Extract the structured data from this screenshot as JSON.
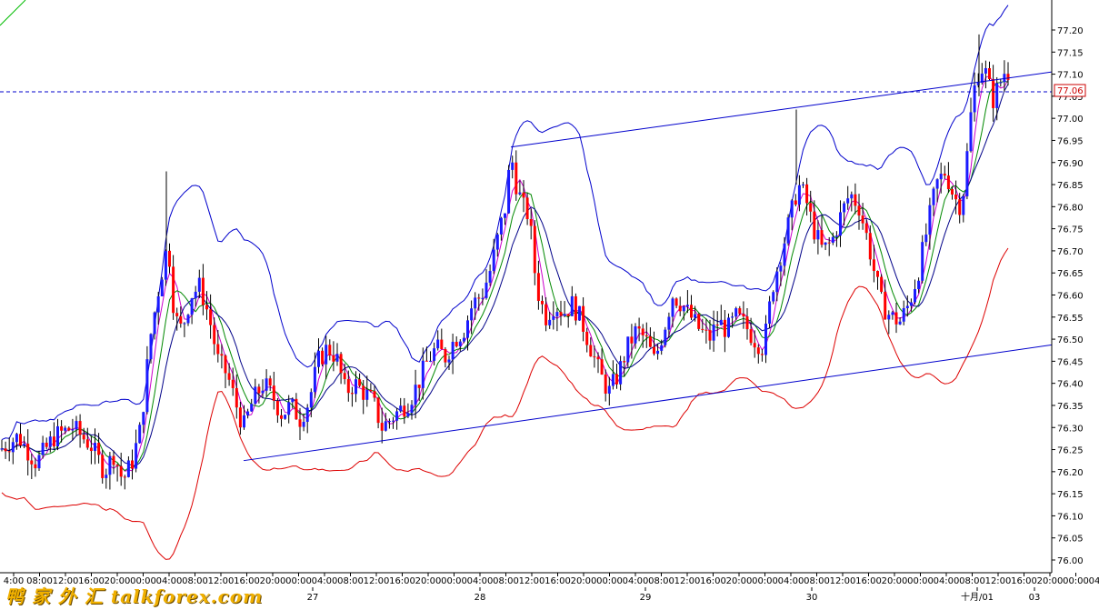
{
  "chart_data": {
    "type": "candlestick",
    "ylim": [
      75.98,
      77.25
    ],
    "price_ticks": [
      "77.20",
      "77.15",
      "77.10",
      "77.05",
      "77.00",
      "76.95",
      "76.90",
      "76.85",
      "76.80",
      "76.75",
      "76.70",
      "76.65",
      "76.60",
      "76.55",
      "76.50",
      "76.45",
      "76.40",
      "76.35",
      "76.30",
      "76.25",
      "76.20",
      "76.15",
      "76.10",
      "76.05",
      "76.00"
    ],
    "current_price": "77.06",
    "time_ticks": [
      "4:00",
      "08:00",
      "12:00",
      "16:00",
      "20:00",
      "00:00",
      "04:00",
      "08:00",
      "12:00",
      "16:00",
      "20:00",
      "00:00",
      "04:00",
      "08:00",
      "12:00",
      "16:00",
      "20:00",
      "00:00",
      "04:00",
      "08:00",
      "12:00",
      "16:00",
      "20:00",
      "00:00",
      "04:00",
      "08:00",
      "12:00",
      "16:00",
      "20:00",
      "00:00",
      "04:00",
      "08:00",
      "12:00",
      "16:00",
      "20:00",
      "00:00",
      "04:00",
      "08:00",
      "12:00",
      "16:00",
      "20:00",
      "00:00",
      "04:00",
      "08:00"
    ],
    "date_labels": [
      "27",
      "28",
      "29",
      "30",
      "十月/01",
      "03"
    ],
    "colors": {
      "up": "#1a1aff",
      "down": "#ff0000",
      "band": "#0000cc",
      "lower": "#dd0000",
      "ma1": "#cc00cc",
      "ma2": "#008800",
      "ma3": "#000088",
      "channel": "#0000cc",
      "hline": "#0000cc"
    },
    "path_points": [
      [
        0,
        76.25
      ],
      [
        20,
        76.28
      ],
      [
        40,
        76.22
      ],
      [
        60,
        76.28
      ],
      [
        80,
        76.3
      ],
      [
        100,
        76.26
      ],
      [
        115,
        76.2
      ],
      [
        125,
        76.24
      ],
      [
        135,
        76.18
      ],
      [
        145,
        76.22
      ],
      [
        155,
        76.3
      ],
      [
        165,
        76.5
      ],
      [
        175,
        76.62
      ],
      [
        185,
        76.72
      ],
      [
        192,
        76.55
      ],
      [
        200,
        76.52
      ],
      [
        210,
        76.6
      ],
      [
        220,
        76.62
      ],
      [
        230,
        76.55
      ],
      [
        240,
        76.45
      ],
      [
        250,
        76.42
      ],
      [
        260,
        76.35
      ],
      [
        268,
        76.3
      ],
      [
        278,
        76.36
      ],
      [
        290,
        76.4
      ],
      [
        300,
        76.37
      ],
      [
        310,
        76.33
      ],
      [
        320,
        76.35
      ],
      [
        330,
        76.32
      ],
      [
        340,
        76.36
      ],
      [
        350,
        76.45
      ],
      [
        360,
        76.48
      ],
      [
        370,
        76.46
      ],
      [
        380,
        76.38
      ],
      [
        390,
        76.4
      ],
      [
        400,
        76.38
      ],
      [
        410,
        76.36
      ],
      [
        420,
        76.3
      ],
      [
        430,
        76.32
      ],
      [
        440,
        76.34
      ],
      [
        450,
        76.36
      ],
      [
        460,
        76.4
      ],
      [
        470,
        76.45
      ],
      [
        480,
        76.48
      ],
      [
        490,
        76.46
      ],
      [
        500,
        76.5
      ],
      [
        510,
        76.52
      ],
      [
        520,
        76.58
      ],
      [
        530,
        76.6
      ],
      [
        540,
        76.66
      ],
      [
        550,
        76.75
      ],
      [
        556,
        76.8
      ],
      [
        562,
        76.92
      ],
      [
        568,
        76.85
      ],
      [
        575,
        76.8
      ],
      [
        582,
        76.78
      ],
      [
        590,
        76.62
      ],
      [
        600,
        76.55
      ],
      [
        610,
        76.58
      ],
      [
        620,
        76.56
      ],
      [
        630,
        76.58
      ],
      [
        640,
        76.54
      ],
      [
        650,
        76.48
      ],
      [
        660,
        76.42
      ],
      [
        670,
        76.38
      ],
      [
        680,
        76.42
      ],
      [
        690,
        76.48
      ],
      [
        700,
        76.52
      ],
      [
        710,
        76.5
      ],
      [
        720,
        76.45
      ],
      [
        730,
        76.52
      ],
      [
        740,
        76.6
      ],
      [
        750,
        76.58
      ],
      [
        760,
        76.55
      ],
      [
        770,
        76.52
      ],
      [
        780,
        76.5
      ],
      [
        790,
        76.54
      ],
      [
        800,
        76.52
      ],
      [
        810,
        76.55
      ],
      [
        820,
        76.53
      ],
      [
        830,
        76.5
      ],
      [
        840,
        76.48
      ],
      [
        850,
        76.62
      ],
      [
        860,
        76.7
      ],
      [
        870,
        76.78
      ],
      [
        878,
        76.85
      ],
      [
        886,
        76.82
      ],
      [
        895,
        76.75
      ],
      [
        905,
        76.7
      ],
      [
        915,
        76.72
      ],
      [
        925,
        76.78
      ],
      [
        935,
        76.83
      ],
      [
        945,
        76.8
      ],
      [
        955,
        76.72
      ],
      [
        962,
        76.65
      ],
      [
        970,
        76.58
      ],
      [
        980,
        76.55
      ],
      [
        990,
        76.54
      ],
      [
        1000,
        76.58
      ],
      [
        1010,
        76.65
      ],
      [
        1020,
        76.75
      ],
      [
        1030,
        76.85
      ],
      [
        1040,
        76.88
      ],
      [
        1050,
        76.82
      ],
      [
        1058,
        76.8
      ],
      [
        1064,
        76.92
      ],
      [
        1070,
        77.05
      ],
      [
        1078,
        77.12
      ],
      [
        1085,
        77.1
      ],
      [
        1092,
        77.04
      ],
      [
        1100,
        77.08
      ],
      [
        1108,
        77.12
      ],
      [
        1112,
        77.06
      ]
    ]
  }
}
